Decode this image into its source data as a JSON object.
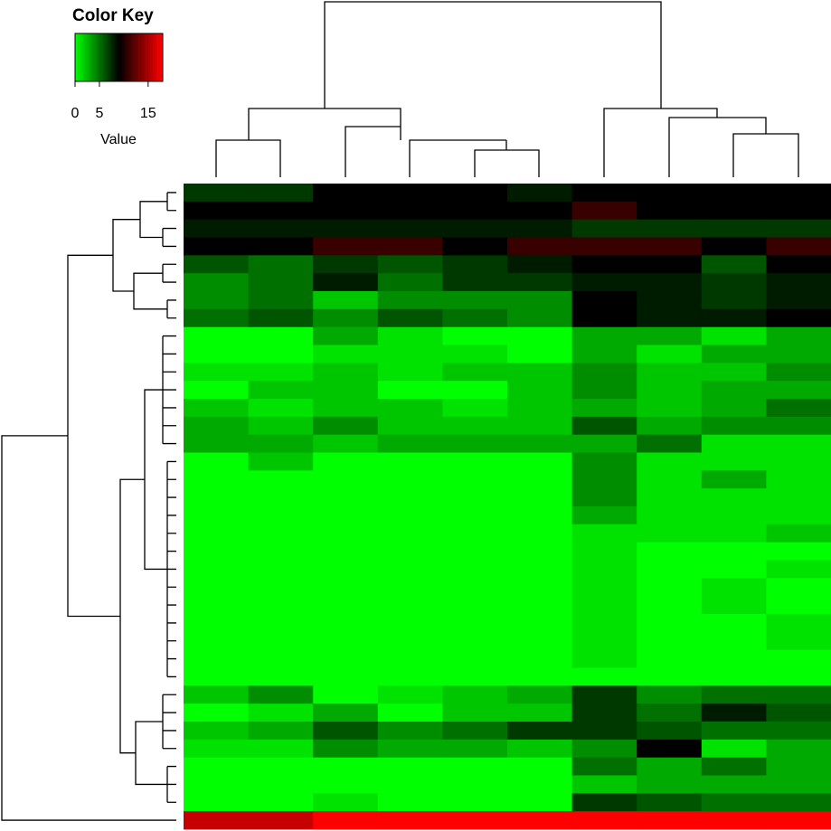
{
  "chart_data": {
    "type": "heatmap",
    "key_title": "Color Key",
    "key_label": "Value",
    "key_lim": [
      0,
      18
    ],
    "key_ticks": [
      0,
      5,
      15
    ],
    "colors": [
      "#00ff00",
      "#000000",
      "#ff0000"
    ],
    "matrix": [
      [
        7,
        7,
        9,
        9,
        9,
        8,
        9,
        9,
        9,
        9
      ],
      [
        9,
        9,
        9,
        9,
        9,
        9,
        11,
        9,
        9,
        9
      ],
      [
        8,
        8,
        8,
        8,
        8,
        8,
        7,
        7,
        7,
        7
      ],
      [
        9,
        9,
        11,
        11,
        9,
        11,
        11,
        11,
        9,
        11
      ],
      [
        6,
        5,
        7,
        6,
        7,
        8,
        9,
        9,
        6,
        9
      ],
      [
        4,
        5,
        8,
        5,
        7,
        7,
        8,
        8,
        7,
        8
      ],
      [
        4,
        5,
        2,
        4,
        4,
        4,
        9,
        8,
        7,
        8
      ],
      [
        5,
        6,
        4,
        6,
        5,
        4,
        9,
        8,
        8,
        9
      ],
      [
        0,
        0,
        3,
        1,
        0,
        0,
        3,
        3,
        1,
        3
      ],
      [
        0,
        0,
        1,
        1,
        1,
        0,
        3,
        1,
        3,
        3
      ],
      [
        1,
        1,
        2,
        1,
        2,
        2,
        4,
        2,
        2,
        4
      ],
      [
        0,
        2,
        2,
        0,
        0,
        2,
        4,
        2,
        3,
        3
      ],
      [
        2,
        1,
        2,
        2,
        1,
        2,
        3,
        2,
        3,
        5
      ],
      [
        3,
        2,
        4,
        2,
        2,
        2,
        6,
        3,
        4,
        4
      ],
      [
        3,
        3,
        2,
        3,
        3,
        3,
        3,
        5,
        1,
        1
      ],
      [
        0,
        2,
        0,
        0,
        0,
        0,
        4,
        1,
        1,
        1
      ],
      [
        0,
        0,
        0,
        0,
        0,
        0,
        4,
        1,
        3,
        1
      ],
      [
        0,
        0,
        0,
        0,
        0,
        0,
        4,
        1,
        1,
        1
      ],
      [
        0,
        0,
        0,
        0,
        0,
        0,
        3,
        1,
        1,
        1
      ],
      [
        0,
        0,
        0,
        0,
        0,
        0,
        1,
        1,
        1,
        2
      ],
      [
        0,
        0,
        0,
        0,
        0,
        0,
        1,
        0,
        0,
        0
      ],
      [
        0,
        0,
        0,
        0,
        0,
        0,
        1,
        0,
        0,
        1
      ],
      [
        0,
        0,
        0,
        0,
        0,
        0,
        1,
        0,
        1,
        0
      ],
      [
        0,
        0,
        0,
        0,
        0,
        0,
        1,
        0,
        1,
        0
      ],
      [
        0,
        0,
        0,
        0,
        0,
        0,
        1,
        0,
        0,
        1
      ],
      [
        0,
        0,
        0,
        0,
        0,
        0,
        1,
        0,
        0,
        1
      ],
      [
        0,
        0,
        0,
        0,
        0,
        0,
        1,
        0,
        0,
        0
      ],
      [
        0,
        0,
        0,
        0,
        0,
        0,
        0,
        0,
        0,
        0
      ],
      [
        2,
        4,
        0,
        1,
        2,
        3,
        7,
        4,
        5,
        5
      ],
      [
        0,
        1,
        3,
        0,
        2,
        2,
        7,
        5,
        8,
        6
      ],
      [
        2,
        3,
        6,
        4,
        5,
        7,
        7,
        6,
        5,
        5
      ],
      [
        1,
        1,
        4,
        3,
        3,
        2,
        4,
        9,
        1,
        3
      ],
      [
        0,
        0,
        0,
        0,
        0,
        0,
        5,
        3,
        5,
        3
      ],
      [
        0,
        0,
        0,
        0,
        0,
        0,
        2,
        3,
        3,
        3
      ],
      [
        0,
        0,
        1,
        0,
        0,
        0,
        7,
        6,
        5,
        5
      ],
      [
        16,
        16,
        18,
        18,
        18,
        18,
        18,
        18,
        18,
        18
      ]
    ]
  }
}
